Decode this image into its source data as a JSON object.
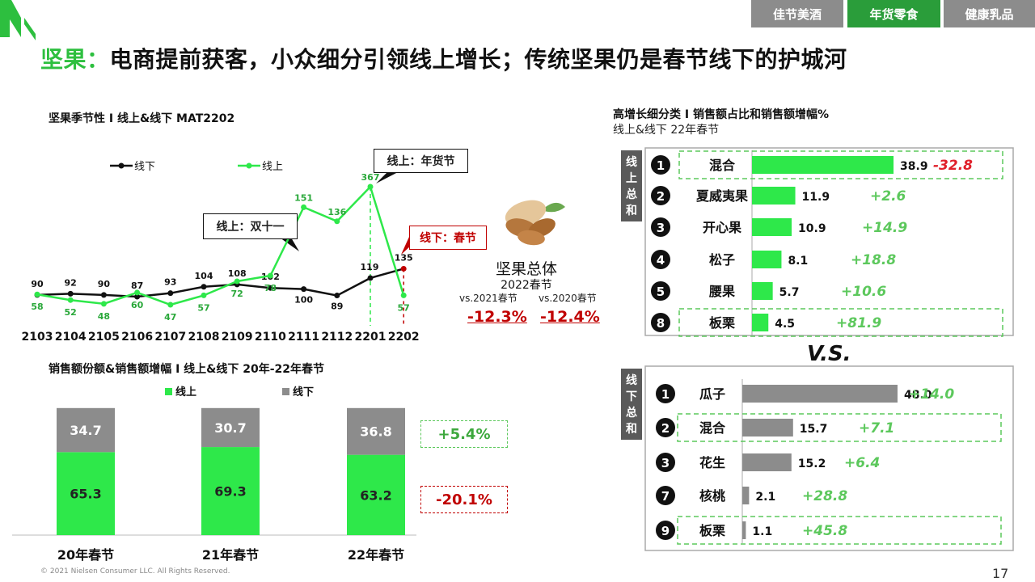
{
  "tabs": [
    {
      "label": "佳节美酒",
      "color": "#8c8c8c"
    },
    {
      "label": "年货零食",
      "color": "#2a9d3a"
    },
    {
      "label": "健康乳品",
      "color": "#8c8c8c"
    }
  ],
  "title": {
    "highlight": "坚果：",
    "rest": "电商提前获客，小众细分引领线上增长；传统坚果仍是春节线下的护城河"
  },
  "line_section_title": "坚果季节性 I 线上&线下 MAT2202",
  "callouts": {
    "double11": "线上：双十一",
    "nianhuo": "线上：年货节",
    "spring": "线下：春节"
  },
  "overall": {
    "title": "坚果总体",
    "subtitle": "2022春节",
    "vs2021_label": "vs.2021春节",
    "vs2021_value": "-12.3%",
    "vs2020_label": "vs.2020春节",
    "vs2020_value": "-12.4%"
  },
  "bar_section_title": "销售额份额&销售额增幅 I 线上&线下 20年-22年春节",
  "bar_growth": {
    "online": "+5.4%",
    "offline": "-20.1%"
  },
  "right_title": "高增长细分类 I 销售额占比和销售额增幅%",
  "right_subtitle": "线上&线下 22年春节",
  "online_label": "线上总和",
  "offline_label": "线下总和",
  "vs": "V.S.",
  "footer": "© 2021 Nielsen Consumer LLC. All Rights Reserved.",
  "page_number": "17",
  "colors": {
    "online": "#2ee84a",
    "offline": "#8c8c8c",
    "growth_pos": "#5cc85c",
    "growth_neg": "#e0202a",
    "callout_red": "#c00000"
  },
  "chart_data": [
    {
      "type": "line",
      "x": [
        "2103",
        "2104",
        "2105",
        "2106",
        "2107",
        "2108",
        "2109",
        "2110",
        "2111",
        "2112",
        "2201",
        "2202"
      ],
      "series": [
        {
          "name": "线下",
          "color": "#111111",
          "values": [
            90,
            92,
            90,
            87,
            93,
            104,
            108,
            102,
            100,
            89,
            119,
            135
          ]
        },
        {
          "name": "线上",
          "color": "#2ee84a",
          "values": [
            58,
            52,
            48,
            60,
            47,
            57,
            72,
            78,
            151,
            136,
            367,
            57
          ]
        }
      ],
      "legend": "top-left"
    },
    {
      "type": "bar",
      "stacked": true,
      "categories": [
        "20年春节",
        "21年春节",
        "22年春节"
      ],
      "series": [
        {
          "name": "线上",
          "color": "#2ee84a",
          "values": [
            65.3,
            69.3,
            63.2
          ]
        },
        {
          "name": "线下",
          "color": "#8c8c8c",
          "values": [
            34.7,
            30.7,
            36.8
          ]
        }
      ],
      "legend": "top"
    },
    {
      "type": "bar",
      "orientation": "horizontal",
      "categories": [
        "混合",
        "夏威夷果",
        "开心果",
        "松子",
        "腰果",
        "板栗"
      ],
      "ranks": [
        "1",
        "2",
        "3",
        "4",
        "5",
        "8"
      ],
      "values": [
        38.9,
        11.9,
        10.9,
        8.1,
        5.7,
        4.5
      ],
      "growth": [
        "-32.8",
        "+2.6",
        "+14.9",
        "+18.8",
        "+10.6",
        "+81.9"
      ],
      "color": "#2ee84a"
    },
    {
      "type": "bar",
      "orientation": "horizontal",
      "categories": [
        "瓜子",
        "混合",
        "花生",
        "核桃",
        "板栗"
      ],
      "ranks": [
        "1",
        "2",
        "3",
        "7",
        "9"
      ],
      "values": [
        48.0,
        15.7,
        15.2,
        2.1,
        1.1
      ],
      "growth": [
        "+14.0",
        "+7.1",
        "+6.4",
        "+28.8",
        "+45.8"
      ],
      "color": "#8c8c8c"
    }
  ]
}
